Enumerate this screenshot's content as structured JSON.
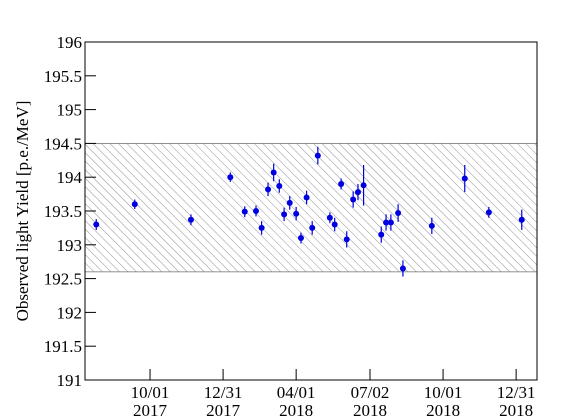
{
  "chart_data": {
    "type": "scatter",
    "y_label": "Observed light Yield [p.e./MeV]",
    "x": [
      "2017-07-26",
      "2017-09-12",
      "2017-11-21",
      "2018-01-09",
      "2018-01-27",
      "2018-02-10",
      "2018-02-17",
      "2018-02-25",
      "2018-03-04",
      "2018-03-11",
      "2018-03-17",
      "2018-03-24",
      "2018-04-01",
      "2018-04-07",
      "2018-04-14",
      "2018-04-21",
      "2018-04-28",
      "2018-05-13",
      "2018-05-19",
      "2018-05-27",
      "2018-06-03",
      "2018-06-11",
      "2018-06-17",
      "2018-06-24",
      "2018-07-16",
      "2018-07-22",
      "2018-07-28",
      "2018-08-06",
      "2018-08-12",
      "2018-09-17",
      "2018-10-28",
      "2018-11-27",
      "2019-01-07"
    ],
    "series": [
      {
        "color": "#0000e0",
        "values": [
          193.3,
          193.6,
          193.37,
          194.0,
          193.49,
          193.5,
          193.25,
          193.82,
          194.07,
          193.87,
          193.45,
          193.62,
          193.46,
          193.1,
          193.7,
          193.25,
          194.32,
          193.4,
          193.3,
          193.9,
          193.08,
          193.67,
          193.78,
          193.88,
          193.15,
          193.33,
          193.33,
          193.47,
          192.65,
          193.28,
          193.98,
          193.48,
          193.37
        ],
        "errors": [
          0.08,
          0.07,
          0.08,
          0.07,
          0.08,
          0.08,
          0.1,
          0.1,
          0.13,
          0.1,
          0.1,
          0.1,
          0.1,
          0.08,
          0.1,
          0.1,
          0.13,
          0.08,
          0.1,
          0.08,
          0.12,
          0.12,
          0.12,
          0.3,
          0.12,
          0.12,
          0.12,
          0.13,
          0.12,
          0.12,
          0.2,
          0.08,
          0.15
        ]
      }
    ],
    "band": [
      192.6,
      194.5
    ],
    "xlim": [
      "2017-07-12",
      "2019-01-26"
    ],
    "xticks": [
      {
        "value": "2017-10-01",
        "label": "10/01\n2017"
      },
      {
        "value": "2017-12-31",
        "label": "12/31\n2017"
      },
      {
        "value": "2018-04-01",
        "label": "04/01\n2018"
      },
      {
        "value": "2018-07-02",
        "label": "07/02\n2018"
      },
      {
        "value": "2018-10-01",
        "label": "10/01\n2018"
      },
      {
        "value": "2018-12-31",
        "label": "12/31\n2018"
      }
    ],
    "ylim": [
      191,
      196
    ],
    "yticks": [
      191,
      191.5,
      192,
      192.5,
      193,
      193.5,
      194,
      194.5,
      195,
      195.5,
      196
    ]
  }
}
